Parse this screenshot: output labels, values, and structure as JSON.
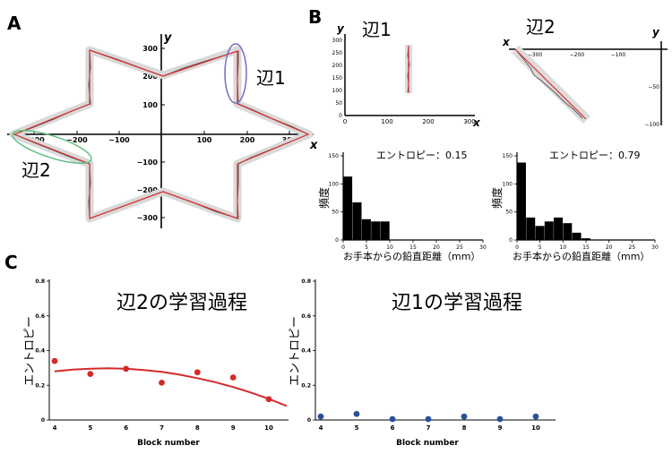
{
  "panels": {
    "A": {
      "letter": "A",
      "x_axis_label": "x",
      "y_axis_label": "y",
      "x_ticks": [
        "−300",
        "−200",
        "−100",
        "100",
        "200",
        "300"
      ],
      "y_ticks": [
        "300",
        "200",
        "100",
        "−100",
        "−200",
        "−300"
      ],
      "edge1_label": "辺1",
      "edge2_label": "辺2",
      "highlight_colors": {
        "edge1": "#6f6fc4",
        "edge2": "#5fbf7f"
      }
    },
    "B": {
      "letter": "B",
      "edge1": {
        "title": "辺1",
        "x_axis_label": "x",
        "y_axis_label": "y",
        "x_ticks": [
          "0",
          "100",
          "200",
          "300"
        ],
        "y_ticks": [
          "0",
          "50",
          "100",
          "150",
          "200",
          "250",
          "300"
        ]
      },
      "edge2": {
        "title": "辺2",
        "x_axis_label": "x",
        "y_axis_label": "y",
        "x_ticks": [
          "−300",
          "−200",
          "−100"
        ],
        "y_ticks": [
          "−50",
          "−100"
        ]
      }
    },
    "C": {
      "letter": "C"
    }
  },
  "chart_data": [
    {
      "type": "bar",
      "panel": "B-left",
      "annotation": "エントロピー：0.15",
      "xlabel": "お手本からの鉛直距離（mm）",
      "ylabel": "頻度",
      "xlim": [
        0,
        30
      ],
      "ylim": [
        0,
        150
      ],
      "x_ticks": [
        "0",
        "5",
        "10",
        "15",
        "20",
        "25",
        "30"
      ],
      "y_ticks": [
        "0",
        "50",
        "100",
        "150"
      ],
      "bin_edges": [
        0,
        2,
        4,
        6,
        8,
        10
      ],
      "values": [
        113,
        67,
        37,
        33,
        33
      ]
    },
    {
      "type": "bar",
      "panel": "B-right",
      "annotation": "エントロピー：0.79",
      "xlabel": "お手本からの鉛直距離（mm）",
      "ylabel": "頻度",
      "xlim": [
        0,
        30
      ],
      "ylim": [
        0,
        150
      ],
      "x_ticks": [
        "0",
        "5",
        "10",
        "15",
        "20",
        "25",
        "30"
      ],
      "y_ticks": [
        "0",
        "50",
        "100",
        "150"
      ],
      "bin_edges": [
        0,
        2,
        4,
        6,
        8,
        10,
        12,
        14,
        16
      ],
      "values": [
        138,
        40,
        25,
        33,
        40,
        30,
        13,
        3
      ]
    },
    {
      "type": "scatter",
      "panel": "C-left",
      "title": "辺2の学習過程",
      "xlabel": "Block number",
      "ylabel": "エントロピー",
      "xlim": [
        4,
        10.5
      ],
      "ylim": [
        0,
        0.8
      ],
      "x_ticks": [
        "4",
        "5",
        "6",
        "7",
        "8",
        "9",
        "10"
      ],
      "y_ticks": [
        "0",
        "0.2",
        "0.4",
        "0.6",
        "0.8"
      ],
      "point_color": "#d42a2a",
      "x": [
        4,
        5,
        6,
        7,
        8,
        9,
        10
      ],
      "y": [
        0.34,
        0.265,
        0.295,
        0.215,
        0.275,
        0.245,
        0.12
      ],
      "fit_line": {
        "color": "#d42a2a",
        "x": [
          4,
          4.5,
          5,
          5.5,
          6,
          6.5,
          7,
          7.5,
          8,
          8.5,
          9,
          9.5,
          10,
          10.5
        ],
        "y": [
          0.28,
          0.29,
          0.295,
          0.298,
          0.295,
          0.288,
          0.277,
          0.261,
          0.241,
          0.218,
          0.19,
          0.158,
          0.122,
          0.081
        ]
      }
    },
    {
      "type": "scatter",
      "panel": "C-right",
      "title": "辺1の学習過程",
      "xlabel": "Block number",
      "ylabel": "エントロピー",
      "xlim": [
        4,
        10.5
      ],
      "ylim": [
        0,
        0.8
      ],
      "x_ticks": [
        "4",
        "5",
        "6",
        "7",
        "8",
        "9",
        "10"
      ],
      "y_ticks": [
        "0",
        "0.2",
        "0.4",
        "0.6",
        "0.8"
      ],
      "point_color": "#2a4f99",
      "x": [
        4,
        5,
        6,
        7,
        8,
        9,
        10
      ],
      "y": [
        0.02,
        0.035,
        0.005,
        0.005,
        0.02,
        0.005,
        0.02
      ]
    }
  ]
}
